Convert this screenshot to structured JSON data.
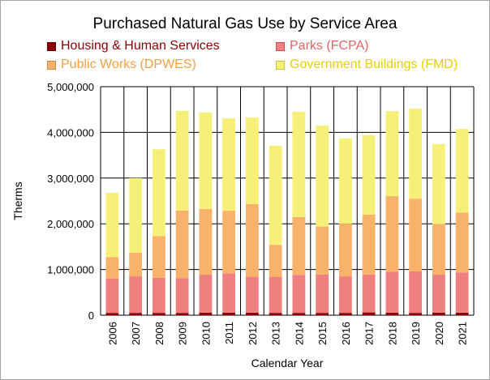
{
  "chart_data": {
    "type": "bar",
    "stacked": true,
    "title": "Purchased Natural Gas Use by Service Area",
    "xlabel": "Calendar Year",
    "ylabel": "Therms",
    "ylim": [
      0,
      5000000
    ],
    "yticks": [
      0,
      1000000,
      2000000,
      3000000,
      4000000,
      5000000
    ],
    "ytick_labels": [
      "0",
      "1,000,000",
      "2,000,000",
      "3,000,000",
      "4,000,000",
      "5,000,000"
    ],
    "grid": true,
    "legend_position": "top",
    "categories": [
      "2006",
      "2007",
      "2008",
      "2009",
      "2010",
      "2011",
      "2012",
      "2013",
      "2014",
      "2015",
      "2016",
      "2017",
      "2018",
      "2019",
      "2020",
      "2021"
    ],
    "series": [
      {
        "name": "Housing & Human Services",
        "color": "#8b0000",
        "values": [
          50000,
          50000,
          50000,
          50000,
          55000,
          55000,
          55000,
          50000,
          50000,
          50000,
          50000,
          60000,
          55000,
          50000,
          55000,
          55000
        ]
      },
      {
        "name": "Parks (FCPA)",
        "color": "#f08080",
        "values": [
          750000,
          800000,
          770000,
          760000,
          830000,
          860000,
          790000,
          790000,
          830000,
          840000,
          800000,
          830000,
          900000,
          910000,
          830000,
          880000
        ]
      },
      {
        "name": "Public Works (DPWES)",
        "color": "#f8b26a",
        "values": [
          470000,
          520000,
          910000,
          1480000,
          1440000,
          1370000,
          1590000,
          700000,
          1270000,
          1050000,
          1150000,
          1310000,
          1650000,
          1590000,
          1110000,
          1310000
        ]
      },
      {
        "name": "Government Buildings (FMD)",
        "color": "#f6f078",
        "values": [
          1410000,
          1630000,
          1900000,
          2180000,
          2110000,
          2020000,
          1890000,
          2170000,
          2300000,
          2210000,
          1870000,
          1740000,
          1860000,
          1970000,
          1750000,
          1830000
        ]
      }
    ]
  },
  "legend": [
    {
      "label": "Housing & Human Services",
      "text_color": "#8b0000",
      "swatch": "#8b0000"
    },
    {
      "label": "Parks (FCPA)",
      "text_color": "#e06666",
      "swatch": "#f08080"
    },
    {
      "label": "Public Works (DPWES)",
      "text_color": "#f4a040",
      "swatch": "#f8b26a"
    },
    {
      "label": "Government Buildings (FMD)",
      "text_color": "#e8d000",
      "swatch": "#f6f078"
    }
  ]
}
